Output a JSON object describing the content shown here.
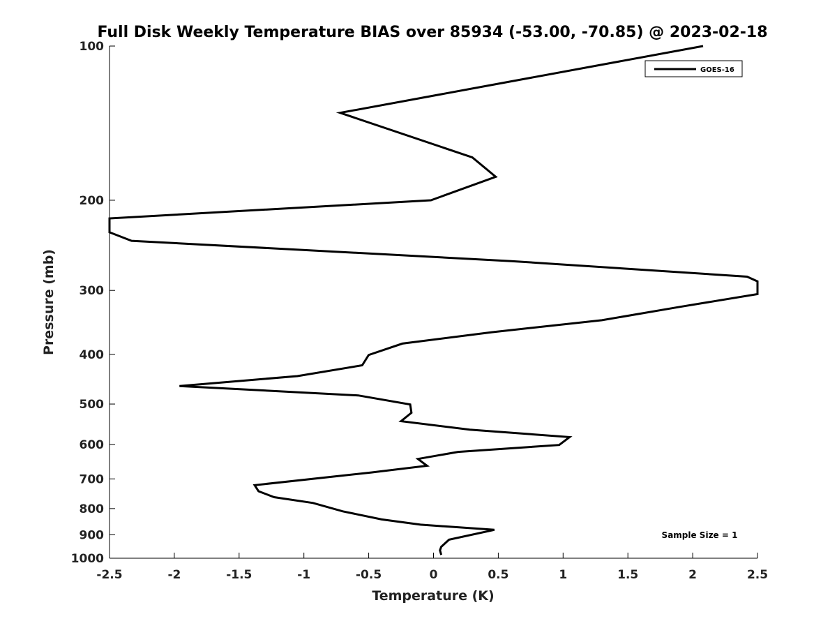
{
  "chart_data": {
    "type": "line",
    "title": "Full Disk Weekly Temperature BIAS over 85934 (-53.00, -70.85) @ 2023-02-18",
    "xlabel": "Temperature (K)",
    "ylabel": "Pressure (mb)",
    "xlim": [
      -2.5,
      2.5
    ],
    "ylim": [
      1000,
      100
    ],
    "y_scale": "log",
    "y_reversed": true,
    "grid": false,
    "x_ticks": [
      -2.5,
      -2,
      -1.5,
      -1,
      -0.5,
      0,
      0.5,
      1,
      1.5,
      2,
      2.5
    ],
    "x_tick_labels": [
      "-2.5",
      "-2",
      "-1.5",
      "-1",
      "-0.5",
      "0",
      "0.5",
      "1",
      "1.5",
      "2",
      "2.5"
    ],
    "y_ticks": [
      100,
      200,
      300,
      400,
      500,
      600,
      700,
      800,
      900,
      1000
    ],
    "y_tick_labels": [
      "100",
      "200",
      "300",
      "400",
      "500",
      "600",
      "700",
      "800",
      "900",
      "1000"
    ],
    "legend_position": "top-right",
    "series": [
      {
        "name": "GOES-16",
        "color": "#000000",
        "points": [
          {
            "x": 2.08,
            "y": 100
          },
          {
            "x": -0.72,
            "y": 135
          },
          {
            "x": 0.3,
            "y": 165
          },
          {
            "x": 0.48,
            "y": 180
          },
          {
            "x": -0.02,
            "y": 200
          },
          {
            "x": -2.5,
            "y": 217
          },
          {
            "x": -2.5,
            "y": 231
          },
          {
            "x": -2.33,
            "y": 240
          },
          {
            "x": 0.6,
            "y": 263
          },
          {
            "x": 2.42,
            "y": 282
          },
          {
            "x": 2.5,
            "y": 288
          },
          {
            "x": 2.5,
            "y": 305
          },
          {
            "x": 1.9,
            "y": 323
          },
          {
            "x": 1.3,
            "y": 343
          },
          {
            "x": 0.45,
            "y": 362
          },
          {
            "x": -0.24,
            "y": 381
          },
          {
            "x": -0.5,
            "y": 401
          },
          {
            "x": -0.55,
            "y": 420
          },
          {
            "x": -1.05,
            "y": 441
          },
          {
            "x": -1.96,
            "y": 461
          },
          {
            "x": -0.58,
            "y": 481
          },
          {
            "x": -0.18,
            "y": 501
          },
          {
            "x": -0.17,
            "y": 520
          },
          {
            "x": -0.25,
            "y": 540
          },
          {
            "x": 0.28,
            "y": 561
          },
          {
            "x": 1.05,
            "y": 580
          },
          {
            "x": 0.97,
            "y": 601
          },
          {
            "x": 0.19,
            "y": 620
          },
          {
            "x": -0.12,
            "y": 640
          },
          {
            "x": -0.05,
            "y": 660
          },
          {
            "x": -0.48,
            "y": 680
          },
          {
            "x": -1.38,
            "y": 720
          },
          {
            "x": -1.35,
            "y": 740
          },
          {
            "x": -1.23,
            "y": 760
          },
          {
            "x": -0.93,
            "y": 780
          },
          {
            "x": -0.7,
            "y": 810
          },
          {
            "x": -0.4,
            "y": 840
          },
          {
            "x": -0.1,
            "y": 860
          },
          {
            "x": 0.47,
            "y": 880
          },
          {
            "x": 0.12,
            "y": 920
          },
          {
            "x": 0.06,
            "y": 950
          },
          {
            "x": 0.05,
            "y": 965
          },
          {
            "x": 0.06,
            "y": 985
          }
        ]
      }
    ],
    "annotations": [
      {
        "text": "Sample Size = 1",
        "position": "bottom-right"
      }
    ]
  }
}
